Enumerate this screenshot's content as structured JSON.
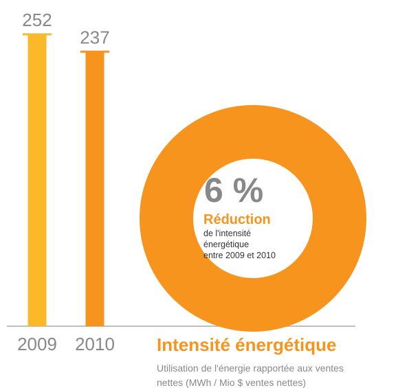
{
  "chart_data": {
    "type": "bar",
    "title": "Intensité énergétique",
    "subtitle": [
      "Utilisation de l'énergie rapportée aux ventes",
      "nettes (MWh / Mio $ ventes nettes)"
    ],
    "categories": [
      "2009",
      "2010"
    ],
    "values": [
      252,
      237
    ],
    "colors": [
      "#fbb829",
      "#f7941d"
    ],
    "highlight": {
      "value": 6,
      "label": "6 %",
      "heading": "Réduction",
      "text": [
        "de l'intensité",
        "énergétique",
        "entre 2009 et 2010"
      ],
      "color": "#f7941d"
    }
  }
}
